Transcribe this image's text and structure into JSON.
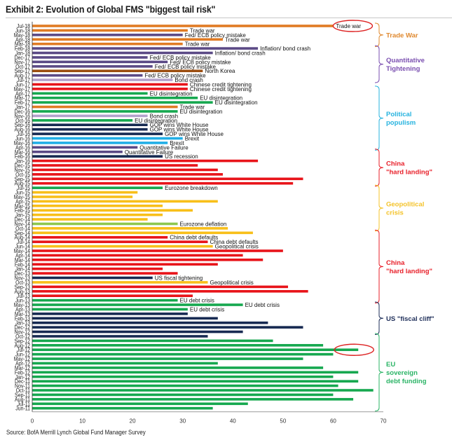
{
  "header": {
    "title": "Exhibit 2: Evolution of Global FMS \"biggest tail risk\""
  },
  "footer": {
    "source": "Source: BofA Merrill Lynch Global Fund Manager Survey"
  },
  "colors": {
    "trade_war": "#e07b24",
    "qt_purple": "#5b4a86",
    "qt_lavender": "#b3a2cc",
    "north_korea": "#9c4f12",
    "china_red": "#e8141a",
    "eu_green": "#16a84f",
    "us_navy": "#172a52",
    "brexit_blue": "#21aee6",
    "geo_yellow": "#f8bf1a",
    "deflation_green": "#8dc74f",
    "axis": "#999999",
    "highlight_ellipse": "#dd2222"
  },
  "chart_data": {
    "type": "bar",
    "orientation": "horizontal",
    "title": "Exhibit 2: Evolution of Global FMS \"biggest tail risk\"",
    "xlabel": "",
    "ylabel": "",
    "xlim": [
      0,
      70
    ],
    "xticks": [
      0,
      10,
      20,
      30,
      40,
      50,
      60,
      70
    ],
    "grid": false,
    "bars": [
      {
        "month": "Jul-18",
        "value": 60,
        "color": "trade_war",
        "label": "Trade war",
        "highlight": true
      },
      {
        "month": "Jun-18",
        "value": 31,
        "color": "trade_war",
        "label": "Trade war"
      },
      {
        "month": "May-18",
        "value": 30,
        "color": "qt_purple",
        "label": "Fed/ ECB policy mistake"
      },
      {
        "month": "Apr-18",
        "value": 38,
        "color": "trade_war",
        "label": "Trade war"
      },
      {
        "month": "Mar-18",
        "value": 30,
        "color": "trade_war",
        "label": "Trade war"
      },
      {
        "month": "Feb-18",
        "value": 45,
        "color": "qt_purple",
        "label": "Inflation/ bond crash"
      },
      {
        "month": "Jan-18",
        "value": 36,
        "color": "qt_purple",
        "label": "Inflation/ bond crash"
      },
      {
        "month": "Dec-17",
        "value": 23,
        "color": "qt_purple",
        "label": "Fed/ ECB policy mistake"
      },
      {
        "month": "Nov-17",
        "value": 27,
        "color": "qt_purple",
        "label": "Fed/ ECB policy mistake"
      },
      {
        "month": "Oct-17",
        "value": 24,
        "color": "qt_purple",
        "label": "Fed/ ECB policy mistake"
      },
      {
        "month": "Sep-17",
        "value": 34,
        "color": "north_korea",
        "label": "North Korea"
      },
      {
        "month": "Aug-17",
        "value": 22,
        "color": "qt_purple",
        "label": "Fed/ ECB policy mistake"
      },
      {
        "month": "Jul-17",
        "value": 28,
        "color": "qt_lavender",
        "label": "Bond crash"
      },
      {
        "month": "Jun-17",
        "value": 31,
        "color": "china_red",
        "label": "Chinese credit tightening"
      },
      {
        "month": "May-17",
        "value": 31,
        "color": "china_red",
        "label": "Chinese credit tightening"
      },
      {
        "month": "Apr-17",
        "value": 23,
        "color": "eu_green",
        "label": "EU disintegration"
      },
      {
        "month": "Mar-17",
        "value": 33,
        "color": "eu_green",
        "label": "EU disintegration"
      },
      {
        "month": "Feb-17",
        "value": 36,
        "color": "eu_green",
        "label": "EU disintegration"
      },
      {
        "month": "Jan-17",
        "value": 29,
        "color": "trade_war",
        "label": "Trade war"
      },
      {
        "month": "Dec-16",
        "value": 29,
        "color": "eu_green",
        "label": "EU disintegration"
      },
      {
        "month": "Nov-16",
        "value": 23,
        "color": "qt_lavender",
        "label": "Bond crash"
      },
      {
        "month": "Oct-16",
        "value": 20,
        "color": "eu_green",
        "label": "EU disintegration"
      },
      {
        "month": "Sep-16",
        "value": 23,
        "color": "us_navy",
        "label": "GOP wins White House"
      },
      {
        "month": "Aug-16",
        "value": 23,
        "color": "us_navy",
        "label": "GOP wins White House"
      },
      {
        "month": "Jul-16",
        "value": 26,
        "color": "us_navy",
        "label": "GOP wins White House"
      },
      {
        "month": "Jun-16",
        "value": 30,
        "color": "brexit_blue",
        "label": "Brexit"
      },
      {
        "month": "May-16",
        "value": 27,
        "color": "brexit_blue",
        "label": "Brexit"
      },
      {
        "month": "Apr-16",
        "value": 21,
        "color": "qt_purple",
        "label": "Quantitative Failure"
      },
      {
        "month": "Mar-16",
        "value": 18,
        "color": "qt_purple",
        "label": "Quantitative Failure"
      },
      {
        "month": "Feb-16",
        "value": 26,
        "color": "us_navy",
        "label": "US recession"
      },
      {
        "month": "Jan-16",
        "value": 45,
        "color": "china_red",
        "label": ""
      },
      {
        "month": "Dec-15",
        "value": 33,
        "color": "china_red",
        "label": ""
      },
      {
        "month": "Nov-15",
        "value": 37,
        "color": "china_red",
        "label": ""
      },
      {
        "month": "Oct-15",
        "value": 38,
        "color": "china_red",
        "label": ""
      },
      {
        "month": "Sep-15",
        "value": 54,
        "color": "china_red",
        "label": ""
      },
      {
        "month": "Aug-15",
        "value": 52,
        "color": "china_red",
        "label": ""
      },
      {
        "month": "Jul-15",
        "value": 26,
        "color": "eu_green",
        "label": "Eurozone breakdown"
      },
      {
        "month": "Jun-15",
        "value": 21,
        "color": "geo_yellow",
        "label": ""
      },
      {
        "month": "May-15",
        "value": 20,
        "color": "geo_yellow",
        "label": ""
      },
      {
        "month": "Apr-15",
        "value": 37,
        "color": "geo_yellow",
        "label": ""
      },
      {
        "month": "Mar-15",
        "value": 26,
        "color": "geo_yellow",
        "label": ""
      },
      {
        "month": "Feb-15",
        "value": 32,
        "color": "geo_yellow",
        "label": ""
      },
      {
        "month": "Jan-15",
        "value": 26,
        "color": "geo_yellow",
        "label": ""
      },
      {
        "month": "Dec-14",
        "value": 23,
        "color": "geo_yellow",
        "label": ""
      },
      {
        "month": "Nov-14",
        "value": 29,
        "color": "deflation_green",
        "label": "Eurozone deflation"
      },
      {
        "month": "Oct-14",
        "value": 39,
        "color": "geo_yellow",
        "label": ""
      },
      {
        "month": "Sep-14",
        "value": 44,
        "color": "geo_yellow",
        "label": ""
      },
      {
        "month": "Aug-14",
        "value": 27,
        "color": "china_red",
        "label": "China debt defaults"
      },
      {
        "month": "Jul-14",
        "value": 35,
        "color": "china_red",
        "label": "China debt defaults"
      },
      {
        "month": "Jun-14",
        "value": 36,
        "color": "geo_yellow",
        "label": "Geopolitical crisis"
      },
      {
        "month": "May-14",
        "value": 50,
        "color": "china_red",
        "label": ""
      },
      {
        "month": "Apr-14",
        "value": 42,
        "color": "china_red",
        "label": ""
      },
      {
        "month": "Mar-14",
        "value": 46,
        "color": "china_red",
        "label": ""
      },
      {
        "month": "Feb-14",
        "value": 37,
        "color": "china_red",
        "label": ""
      },
      {
        "month": "Jan-14",
        "value": 26,
        "color": "china_red",
        "label": ""
      },
      {
        "month": "Dec-13",
        "value": 29,
        "color": "china_red",
        "label": ""
      },
      {
        "month": "Nov-13",
        "value": 24,
        "color": "us_navy",
        "label": "US fiscal tightening"
      },
      {
        "month": "Oct-13",
        "value": 35,
        "color": "geo_yellow",
        "label": "Geopolitical crisis"
      },
      {
        "month": "Sep-13",
        "value": 51,
        "color": "china_red",
        "label": ""
      },
      {
        "month": "Aug-13",
        "value": 55,
        "color": "china_red",
        "label": ""
      },
      {
        "month": "Jul-13",
        "value": 32,
        "color": "china_red",
        "label": ""
      },
      {
        "month": "Jun-13",
        "value": 29,
        "color": "eu_green",
        "label": "EU debt crisis"
      },
      {
        "month": "May-13",
        "value": 42,
        "color": "eu_green",
        "label": "EU debt crisis"
      },
      {
        "month": "Apr-13",
        "value": 31,
        "color": "eu_green",
        "label": "EU debt crisis"
      },
      {
        "month": "Mar-13",
        "value": 31,
        "color": "us_navy",
        "label": ""
      },
      {
        "month": "Feb-13",
        "value": 37,
        "color": "us_navy",
        "label": ""
      },
      {
        "month": "Jan-13",
        "value": 47,
        "color": "us_navy",
        "label": ""
      },
      {
        "month": "Dec-12",
        "value": 54,
        "color": "us_navy",
        "label": ""
      },
      {
        "month": "Nov-12",
        "value": 42,
        "color": "us_navy",
        "label": ""
      },
      {
        "month": "Oct-12",
        "value": 35,
        "color": "us_navy",
        "label": ""
      },
      {
        "month": "Sep-12",
        "value": 48,
        "color": "eu_green",
        "label": ""
      },
      {
        "month": "Aug-12",
        "value": 58,
        "color": "eu_green",
        "label": ""
      },
      {
        "month": "Jul-12",
        "value": 65,
        "color": "eu_green",
        "label": "",
        "highlight": true
      },
      {
        "month": "Jun-12",
        "value": 60,
        "color": "eu_green",
        "label": ""
      },
      {
        "month": "May-12",
        "value": 54,
        "color": "eu_green",
        "label": ""
      },
      {
        "month": "Apr-12",
        "value": 37,
        "color": "eu_green",
        "label": ""
      },
      {
        "month": "Mar-12",
        "value": 58,
        "color": "eu_green",
        "label": ""
      },
      {
        "month": "Feb-12",
        "value": 65,
        "color": "eu_green",
        "label": ""
      },
      {
        "month": "Jan-12",
        "value": 60,
        "color": "eu_green",
        "label": ""
      },
      {
        "month": "Dec-11",
        "value": 65,
        "color": "eu_green",
        "label": ""
      },
      {
        "month": "Nov-11",
        "value": 61,
        "color": "eu_green",
        "label": ""
      },
      {
        "month": "Oct-11",
        "value": 68,
        "color": "eu_green",
        "label": ""
      },
      {
        "month": "Sep-11",
        "value": 60,
        "color": "eu_green",
        "label": ""
      },
      {
        "month": "Aug-11",
        "value": 64,
        "color": "eu_green",
        "label": ""
      },
      {
        "month": "Jul-11",
        "value": 43,
        "color": "eu_green",
        "label": ""
      },
      {
        "month": "Jun-11",
        "value": 36,
        "color": "eu_green",
        "label": ""
      }
    ],
    "groups": [
      {
        "label": [
          "Trade War"
        ],
        "from": "Jul-18",
        "to": "Mar-18",
        "color": "#e0892f"
      },
      {
        "label": [
          "Quantitative",
          "Tightening"
        ],
        "from": "Feb-18",
        "to": "Jul-17",
        "color": "#7a4fb0"
      },
      {
        "label": [
          "Political",
          "populism"
        ],
        "from": "May-17",
        "to": "Apr-16",
        "color": "#27b3df"
      },
      {
        "label": [
          "China",
          "\"hard landing\""
        ],
        "from": "Mar-16",
        "to": "Aug-15",
        "color": "#e8202a"
      },
      {
        "label": [
          "Geopolitical",
          "crisis"
        ],
        "from": "Jul-15",
        "to": "Oct-14",
        "color": "#f4c32a"
      },
      {
        "label": [
          "China",
          "\"hard landing\""
        ],
        "from": "Sep-14",
        "to": "Jun-13",
        "color": "#e8202a"
      },
      {
        "label": [
          "US \"fiscal cliff\""
        ],
        "from": "May-13",
        "to": "Nov-12",
        "color": "#1f2f5a"
      },
      {
        "label": [
          "EU",
          "sovereign",
          "debt funding"
        ],
        "from": "Oct-12",
        "to": "Jun-11",
        "color": "#2bb466"
      }
    ]
  }
}
